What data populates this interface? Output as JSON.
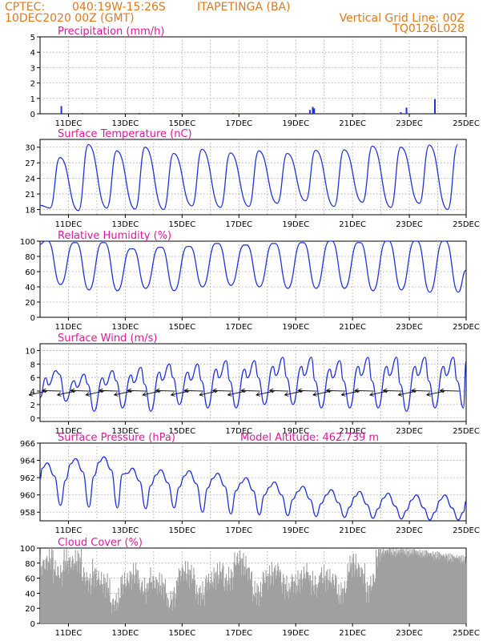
{
  "header": {
    "source": "CPTEC:",
    "coords": "040:19W-15:26S",
    "station": "ITAPETINGA (BA)",
    "init": "10DEC2020 00Z (GMT)",
    "vgrid": "Vertical Grid Line: 00Z",
    "code": "TQ0126L028"
  },
  "colors": {
    "header": "#e07a1a",
    "title": "#e0189c",
    "line": "#2233dd",
    "cloud": "#a0a0a0"
  },
  "chart_data": [
    {
      "type": "bar",
      "title": "Precipitation (mm/h)",
      "xlabels": [
        "11DEC",
        "13DEC",
        "15DEC",
        "17DEC",
        "19DEC",
        "21DEC",
        "23DEC",
        "25DEC"
      ],
      "xrange": [
        10,
        25
      ],
      "ylim": [
        0,
        5
      ],
      "yticks": [
        0,
        1,
        2,
        3,
        4,
        5
      ],
      "grid": true,
      "events": [
        [
          10.75,
          0.5
        ],
        [
          11.5,
          0.05
        ],
        [
          13.5,
          0.05
        ],
        [
          16.8,
          0.05
        ],
        [
          19.5,
          0.25
        ],
        [
          19.6,
          0.45
        ],
        [
          19.65,
          0.35
        ],
        [
          21.4,
          0.05
        ],
        [
          22.7,
          0.1
        ],
        [
          22.9,
          0.4
        ],
        [
          23.9,
          0.95
        ]
      ]
    },
    {
      "type": "line",
      "title": "Surface Temperature (nC)",
      "xlabels": [
        "11DEC",
        "13DEC",
        "15DEC",
        "17DEC",
        "19DEC",
        "21DEC",
        "23DEC",
        "25DEC"
      ],
      "xrange": [
        10,
        25
      ],
      "ylim": [
        17,
        31.5
      ],
      "yticks": [
        18,
        21,
        24,
        27,
        30
      ],
      "grid": true,
      "min": [
        18.3,
        17.8,
        18.3,
        18.1,
        18.0,
        18.7,
        18.4,
        18.6,
        19.2,
        19.7,
        18.6,
        19.4,
        18.4,
        19.2,
        18.0,
        18.2
      ],
      "max": [
        28.0,
        30.5,
        29.3,
        30.0,
        28.8,
        29.6,
        28.9,
        29.3,
        28.8,
        29.4,
        29.5,
        30.2,
        30.0,
        30.4,
        30.5
      ]
    },
    {
      "type": "line",
      "title": "Relative Humidity (%)",
      "xlabels": [
        "11DEC",
        "13DEC",
        "15DEC",
        "17DEC",
        "19DEC",
        "21DEC",
        "23DEC",
        "25DEC"
      ],
      "xrange": [
        10,
        25
      ],
      "ylim": [
        0,
        100
      ],
      "yticks": [
        0,
        20,
        40,
        60,
        80,
        100
      ],
      "grid": true,
      "min": [
        43,
        36,
        35,
        38,
        35,
        40,
        42,
        40,
        38,
        38,
        38,
        35,
        36,
        33,
        33
      ],
      "max": [
        100,
        98,
        98,
        90,
        92,
        93,
        97,
        95,
        97,
        98,
        100,
        98,
        100,
        100,
        100
      ]
    },
    {
      "type": "line",
      "title": "Surface Wind (m/s)",
      "xlabels": [
        "11DEC",
        "13DEC",
        "15DEC",
        "17DEC",
        "19DEC",
        "21DEC",
        "23DEC",
        "25DEC"
      ],
      "xrange": [
        10,
        25
      ],
      "ylim": [
        -0.5,
        11
      ],
      "yticks": [
        0,
        2,
        4,
        6,
        8,
        10
      ],
      "grid": true,
      "peak": [
        7.0,
        6.5,
        7.0,
        7.5,
        8.0,
        8.0,
        8.5,
        8.5,
        9.0,
        9.0,
        8.5,
        9.0,
        9.0,
        9.0,
        9.0
      ],
      "low": [
        2.5,
        1.0,
        1.5,
        1.0,
        2.0,
        1.5,
        1.5,
        2.0,
        2.0,
        1.5,
        1.5,
        1.5,
        1.0,
        1.5
      ],
      "vectors_note": "wind direction arrows along the 4 m/s line"
    },
    {
      "type": "line",
      "title": "Surface Pressure (hPa)",
      "annotation": "Model Altitude: 462.739 m",
      "xlabels": [
        "11DEC",
        "13DEC",
        "15DEC",
        "17DEC",
        "19DEC",
        "21DEC",
        "23DEC",
        "25DEC"
      ],
      "xrange": [
        10,
        25
      ],
      "ylim": [
        957,
        966
      ],
      "yticks": [
        958,
        960,
        962,
        964,
        966
      ],
      "grid": true,
      "hi": [
        963.7,
        964.2,
        964.4,
        963.1,
        962.9,
        962.8,
        962.5,
        962.0,
        961.5,
        961.0,
        960.6,
        960.4,
        960.2,
        960.0
      ],
      "lo": [
        958.8,
        958.6,
        958.5,
        958.4,
        958.5,
        958.0,
        957.8,
        957.7,
        957.6,
        957.5,
        957.4,
        957.3,
        957.2,
        957.1
      ]
    },
    {
      "type": "area",
      "title": "Cloud Cover (%)",
      "xlabels": [
        "11DEC",
        "13DEC",
        "15DEC",
        "17DEC",
        "19DEC",
        "21DEC",
        "23DEC",
        "25DEC"
      ],
      "xrange": [
        10,
        25
      ],
      "ylim": [
        0,
        100
      ],
      "yticks": [
        0,
        20,
        40,
        60,
        80,
        100
      ],
      "grid": true,
      "profile": [
        [
          10,
          75
        ],
        [
          10.5,
          90
        ],
        [
          11,
          80
        ],
        [
          11.5,
          85
        ],
        [
          12,
          60
        ],
        [
          12.5,
          45
        ],
        [
          13,
          55
        ],
        [
          13.5,
          70
        ],
        [
          14,
          55
        ],
        [
          14.5,
          45
        ],
        [
          15,
          70
        ],
        [
          15.5,
          60
        ],
        [
          16,
          55
        ],
        [
          16.5,
          75
        ],
        [
          17,
          85
        ],
        [
          17.5,
          60
        ],
        [
          18,
          60
        ],
        [
          18.5,
          75
        ],
        [
          19,
          50
        ],
        [
          19.5,
          75
        ],
        [
          20,
          60
        ],
        [
          20.5,
          55
        ],
        [
          21,
          80
        ],
        [
          21.5,
          60
        ],
        [
          22,
          100
        ],
        [
          23,
          100
        ],
        [
          24,
          95
        ],
        [
          25,
          90
        ]
      ]
    }
  ]
}
